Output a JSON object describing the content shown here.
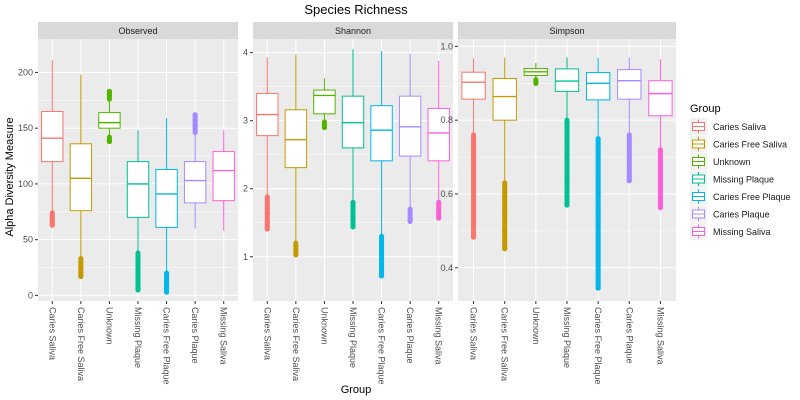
{
  "chart_data": {
    "type": "box",
    "title": "Species Richness",
    "xlabel": "Group",
    "ylabel": "Alpha Diversity Measure",
    "grid": true,
    "legend_position": "right",
    "legend_title": "Group",
    "groups": [
      "Caries Saliva",
      "Caries Free Saliva",
      "Unknown",
      "Missing Plaque",
      "Caries Free Plaque",
      "Caries Plaque",
      "Missing Saliva"
    ],
    "colors": [
      "#F8766D",
      "#C49A00",
      "#53B400",
      "#00C094",
      "#00B6EB",
      "#A58AFF",
      "#FB61D7"
    ],
    "panels": [
      {
        "name": "Observed",
        "ylim": [
          -5,
          230
        ],
        "yticks": [
          0,
          50,
          100,
          150,
          200
        ],
        "ytick_labels": [
          "0",
          "50",
          "100",
          "150",
          "200"
        ],
        "boxes": [
          {
            "group": "Caries Saliva",
            "q1": 120,
            "median": 141,
            "q3": 165,
            "whisker_low": 74,
            "whisker_high": 211,
            "outliers_low": [
              63,
              66,
              70
            ],
            "outliers_high": []
          },
          {
            "group": "Caries Free Saliva",
            "q1": 76,
            "median": 105,
            "q3": 136,
            "whisker_low": 33,
            "whisker_high": 198,
            "outliers_low": [
              17,
              20,
              25
            ],
            "outliers_high": []
          },
          {
            "group": "Unknown",
            "q1": 150,
            "median": 155,
            "q3": 164,
            "whisker_low": 142,
            "whisker_high": 176,
            "outliers_low": [
              138
            ],
            "outliers_high": [
              180,
              183
            ]
          },
          {
            "group": "Missing Plaque",
            "q1": 70,
            "median": 100,
            "q3": 120,
            "whisker_low": 38,
            "whisker_high": 148,
            "outliers_low": [
              5,
              15
            ],
            "outliers_high": []
          },
          {
            "group": "Caries Free Plaque",
            "q1": 61,
            "median": 91,
            "q3": 113,
            "whisker_low": 20,
            "whisker_high": 159,
            "outliers_low": [
              3,
              7,
              12
            ],
            "outliers_high": []
          },
          {
            "group": "Caries Plaque",
            "q1": 83,
            "median": 103,
            "q3": 120,
            "whisker_low": 60,
            "whisker_high": 146,
            "outliers_low": [],
            "outliers_high": [
              152,
              157,
              162
            ]
          },
          {
            "group": "Missing Saliva",
            "q1": 85,
            "median": 112,
            "q3": 129,
            "whisker_low": 58,
            "whisker_high": 148,
            "outliers_low": [],
            "outliers_high": []
          }
        ]
      },
      {
        "name": "Shannon",
        "ylim": [
          0.35,
          4.2
        ],
        "yticks": [
          1,
          2,
          3,
          4
        ],
        "ytick_labels": [
          "1",
          "2",
          "3",
          "4"
        ],
        "boxes": [
          {
            "group": "Caries Saliva",
            "q1": 2.78,
            "median": 3.09,
            "q3": 3.4,
            "whisker_low": 1.88,
            "whisker_high": 3.93,
            "outliers_low": [
              1.41,
              1.5,
              1.64
            ],
            "outliers_high": []
          },
          {
            "group": "Caries Free Saliva",
            "q1": 2.31,
            "median": 2.72,
            "q3": 3.16,
            "whisker_low": 1.2,
            "whisker_high": 3.97,
            "outliers_low": [
              1.03,
              1.1
            ],
            "outliers_high": []
          },
          {
            "group": "Unknown",
            "q1": 3.1,
            "median": 3.37,
            "q3": 3.45,
            "whisker_low": 2.98,
            "whisker_high": 3.62,
            "outliers_low": [
              2.9
            ],
            "outliers_high": []
          },
          {
            "group": "Missing Plaque",
            "q1": 2.6,
            "median": 2.97,
            "q3": 3.36,
            "whisker_low": 1.8,
            "whisker_high": 4.05,
            "outliers_low": [
              1.44,
              1.55
            ],
            "outliers_high": []
          },
          {
            "group": "Caries Free Plaque",
            "q1": 2.41,
            "median": 2.86,
            "q3": 3.22,
            "whisker_low": 1.3,
            "whisker_high": 4.02,
            "outliers_low": [
              0.72,
              0.88,
              1.1
            ],
            "outliers_high": []
          },
          {
            "group": "Caries Plaque",
            "q1": 2.48,
            "median": 2.91,
            "q3": 3.36,
            "whisker_low": 1.7,
            "whisker_high": 3.98,
            "outliers_low": [
              1.52
            ],
            "outliers_high": []
          },
          {
            "group": "Missing Saliva",
            "q1": 2.41,
            "median": 2.82,
            "q3": 3.18,
            "whisker_low": 1.8,
            "whisker_high": 3.88,
            "outliers_low": [
              1.57
            ],
            "outliers_high": []
          }
        ]
      },
      {
        "name": "Simpson",
        "ylim": [
          0.31,
          1.02
        ],
        "yticks": [
          0.4,
          0.6,
          0.8,
          1.0
        ],
        "ytick_labels": [
          "0.4",
          "0.6",
          "0.8",
          "1.0"
        ],
        "boxes": [
          {
            "group": "Caries Saliva",
            "q1": 0.857,
            "median": 0.903,
            "q3": 0.93,
            "whisker_low": 0.76,
            "whisker_high": 0.968,
            "outliers_low": [
              0.483,
              0.49,
              0.62,
              0.65,
              0.7
            ],
            "outliers_high": []
          },
          {
            "group": "Caries Free Saliva",
            "q1": 0.8,
            "median": 0.864,
            "q3": 0.913,
            "whisker_low": 0.63,
            "whisker_high": 0.97,
            "outliers_low": [
              0.452,
              0.47,
              0.5,
              0.55
            ],
            "outliers_high": []
          },
          {
            "group": "Unknown",
            "q1": 0.921,
            "median": 0.931,
            "q3": 0.94,
            "whisker_low": 0.91,
            "whisker_high": 0.955,
            "outliers_low": [
              0.9
            ],
            "outliers_high": []
          },
          {
            "group": "Missing Plaque",
            "q1": 0.878,
            "median": 0.906,
            "q3": 0.939,
            "whisker_low": 0.8,
            "whisker_high": 0.97,
            "outliers_low": [
              0.57,
              0.63,
              0.64,
              0.7,
              0.75
            ],
            "outliers_high": []
          },
          {
            "group": "Caries Free Plaque",
            "q1": 0.855,
            "median": 0.9,
            "q3": 0.929,
            "whisker_low": 0.75,
            "whisker_high": 0.968,
            "outliers_low": [
              0.345,
              0.36,
              0.52,
              0.55,
              0.6,
              0.65
            ],
            "outliers_high": []
          },
          {
            "group": "Caries Plaque",
            "q1": 0.857,
            "median": 0.907,
            "q3": 0.937,
            "whisker_low": 0.76,
            "whisker_high": 0.97,
            "outliers_low": [
              0.636,
              0.65,
              0.7
            ],
            "outliers_high": []
          },
          {
            "group": "Missing Saliva",
            "q1": 0.812,
            "median": 0.872,
            "q3": 0.907,
            "whisker_low": 0.72,
            "whisker_high": 0.965,
            "outliers_low": [
              0.563,
              0.59,
              0.68
            ],
            "outliers_high": []
          }
        ]
      }
    ]
  }
}
